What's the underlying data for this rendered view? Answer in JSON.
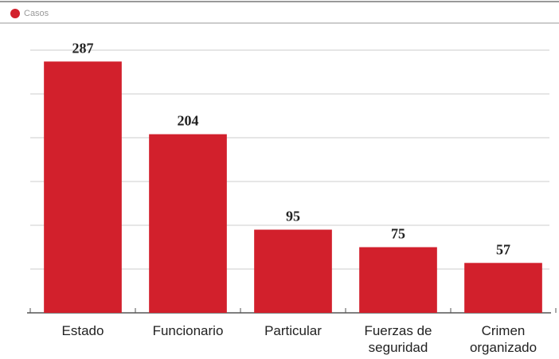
{
  "chart_data": {
    "type": "bar",
    "legend": "Casos",
    "categories": [
      "Estado",
      "Funcionario",
      "Particular",
      "Fuerzas de seguridad",
      "Crimen organizado"
    ],
    "values": [
      287,
      204,
      95,
      75,
      57
    ],
    "color": "#d2202c",
    "ylim": [
      0,
      300
    ],
    "yticks": [
      0,
      50,
      100,
      150,
      200,
      250,
      300
    ],
    "grid": true
  }
}
